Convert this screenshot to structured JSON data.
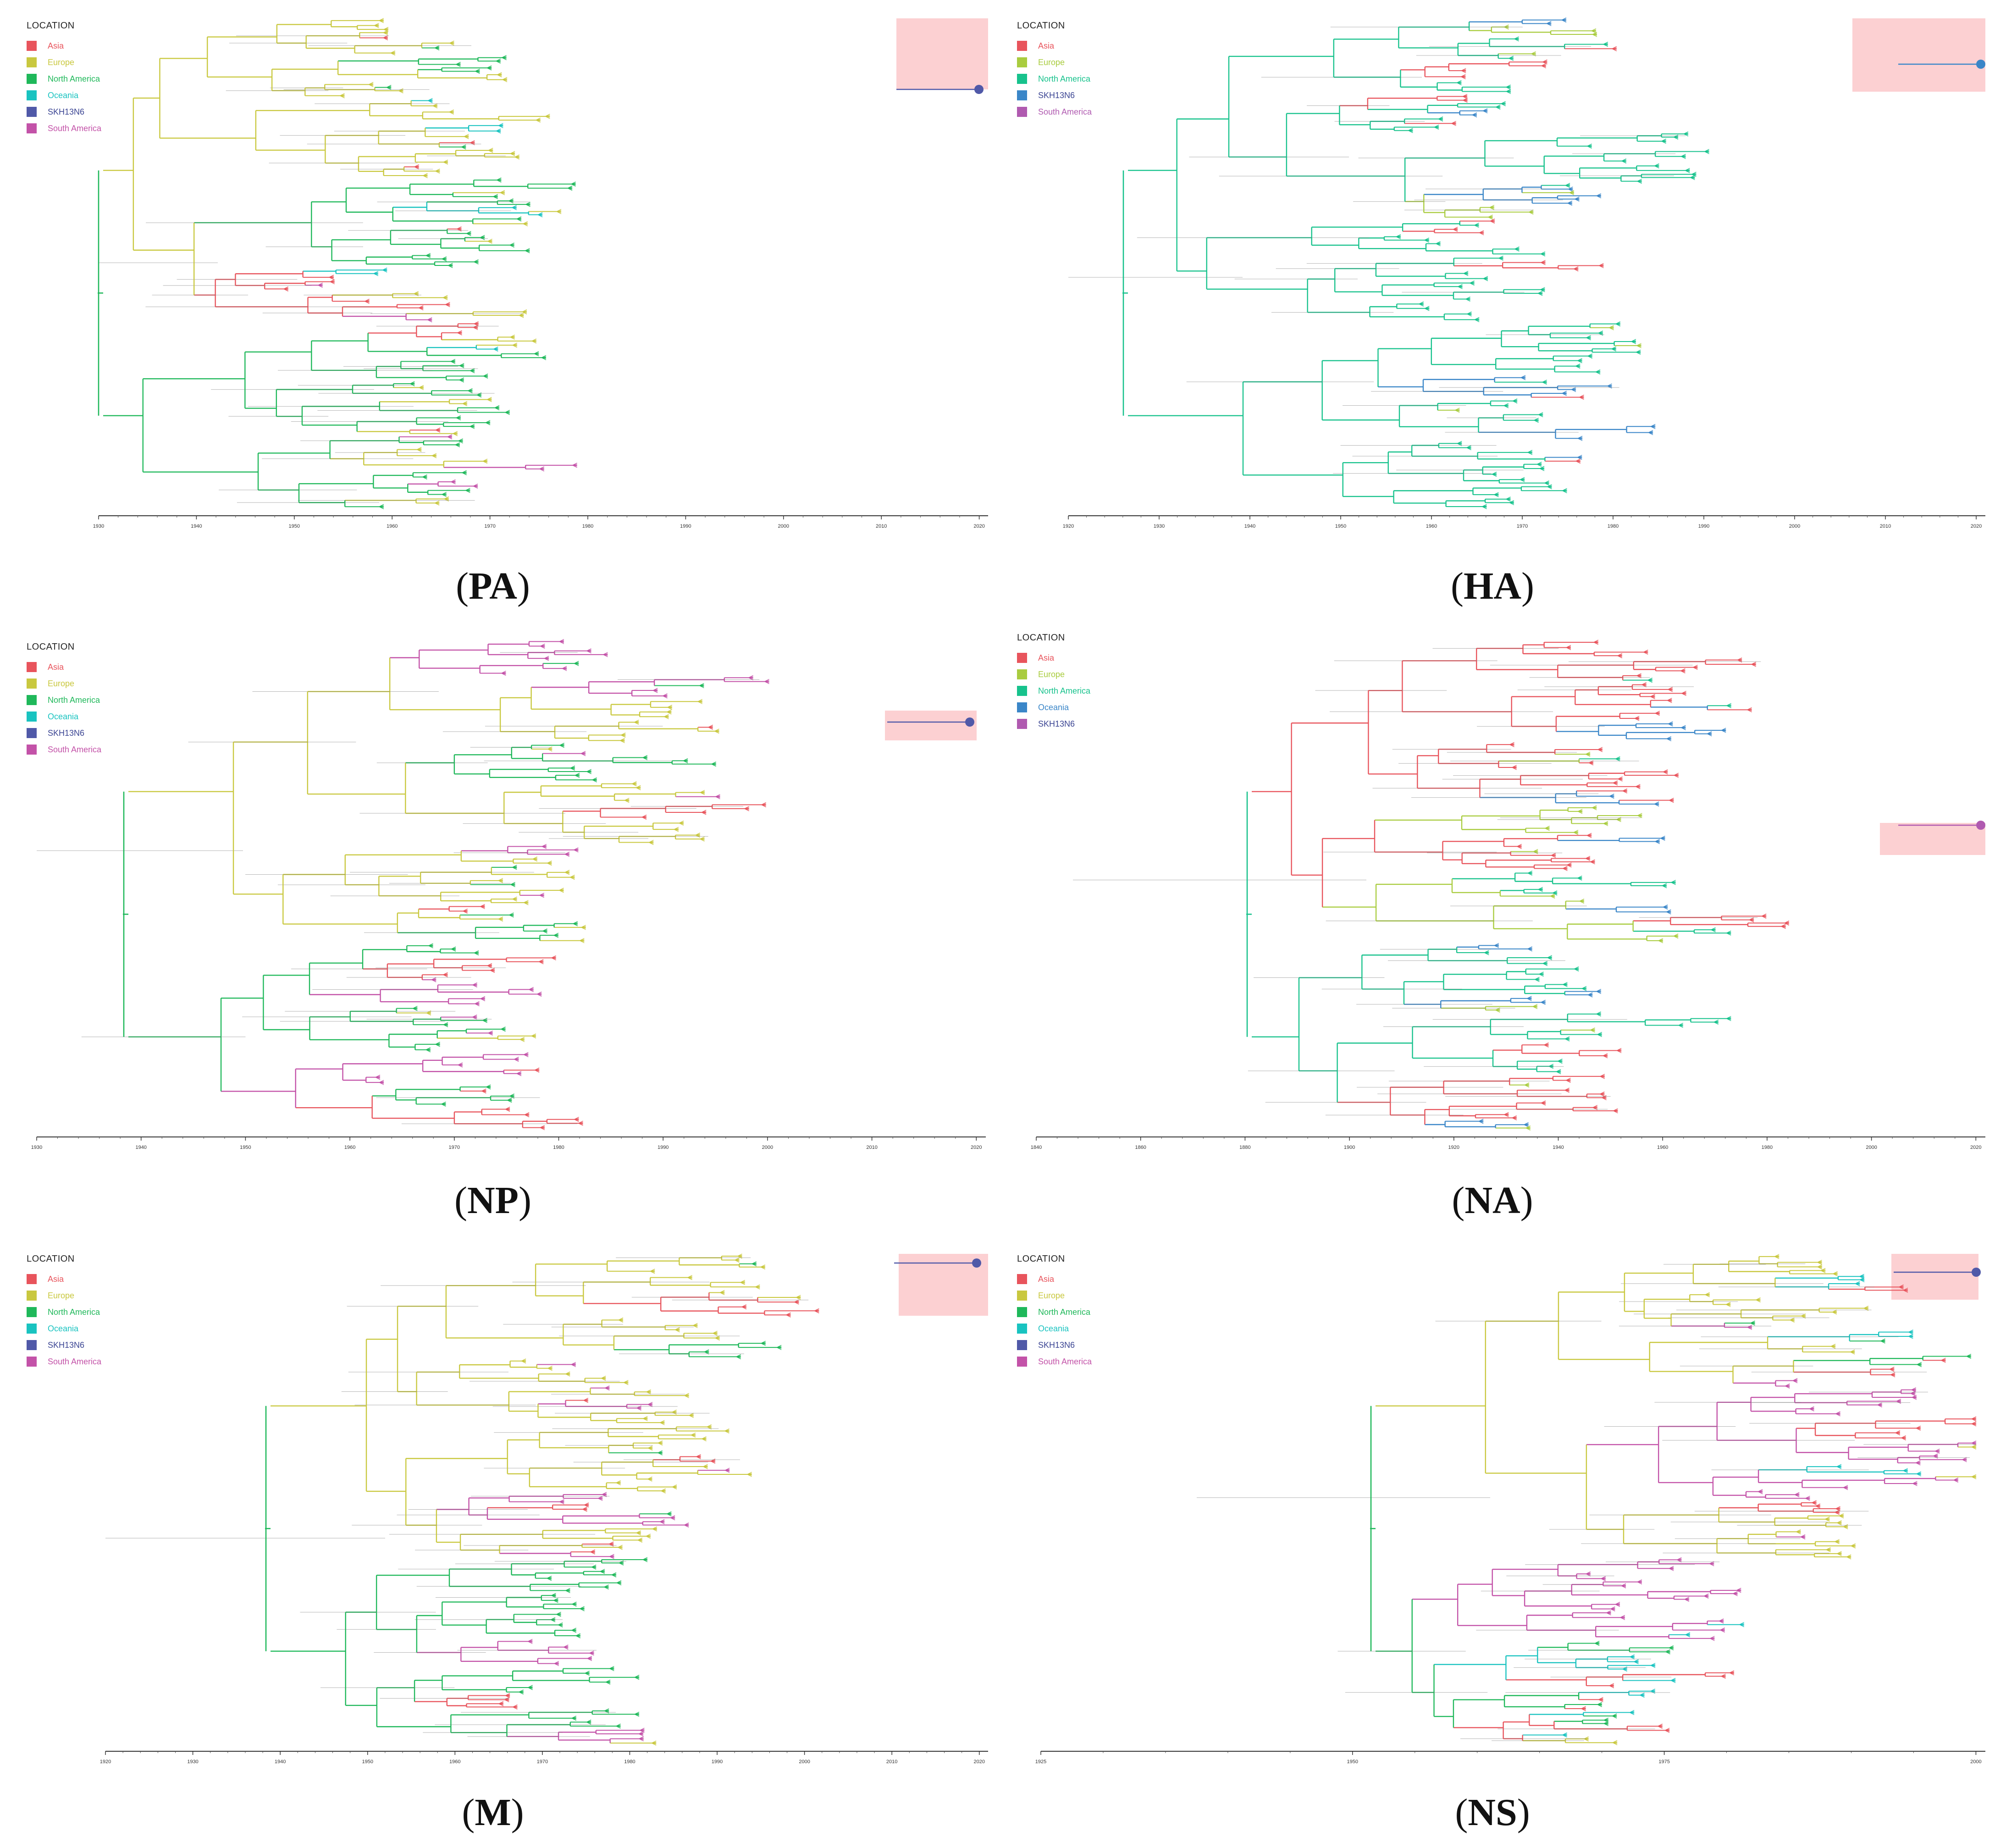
{
  "legend_title": "LOCATION",
  "colors": {
    "Asia": "#e8545c",
    "Europe": "#c9c83f",
    "North America": "#1fb85a",
    "Oceania": "#19c3c0",
    "SKH13N6": "#5059a8",
    "South America": "#c352a8",
    "Europe_alt": "#a9cc3f",
    "NorthAmerica_alt": "#17c28c",
    "Oceania_alt": "#3a86c8",
    "SKH13N6_alt": "#b05ab0",
    "South_America_alt": "#b05ab0",
    "branch_dark": "#2c4f3a",
    "highlight": "#fbc8ca"
  },
  "panels": [
    {
      "id": "PA",
      "label": "PA",
      "legend": [
        "Asia",
        "Europe",
        "North America",
        "Oceania",
        "SKH13N6",
        "South America"
      ],
      "ticks": [
        "1930",
        "1940",
        "1950",
        "1960",
        "1970",
        "1980",
        "1990",
        "2000",
        "2010",
        "2020"
      ]
    },
    {
      "id": "HA",
      "label": "HA",
      "legend": [
        "Asia",
        "Europe",
        "North America",
        "SKH13N6",
        "South America"
      ],
      "ticks": [
        "1920",
        "1930",
        "1940",
        "1950",
        "1960",
        "1970",
        "1980",
        "1990",
        "2000",
        "2010",
        "2020"
      ]
    },
    {
      "id": "NP",
      "label": "NP",
      "legend": [
        "Asia",
        "Europe",
        "North America",
        "Oceania",
        "SKH13N6",
        "South America"
      ],
      "ticks": [
        "1930",
        "1940",
        "1950",
        "1960",
        "1970",
        "1980",
        "1990",
        "2000",
        "2010",
        "2020"
      ]
    },
    {
      "id": "NA",
      "label": "NA",
      "legend": [
        "Asia",
        "Europe",
        "North America",
        "Oceania",
        "SKH13N6"
      ],
      "ticks": [
        "1840",
        "1860",
        "1880",
        "1900",
        "1920",
        "1940",
        "1960",
        "1980",
        "2000",
        "2020"
      ]
    },
    {
      "id": "M",
      "label": "M",
      "legend": [
        "Asia",
        "Europe",
        "North America",
        "Oceania",
        "SKH13N6",
        "South America"
      ],
      "ticks": [
        "1920",
        "1930",
        "1940",
        "1950",
        "1960",
        "1970",
        "1980",
        "1990",
        "2000",
        "2010",
        "2020"
      ]
    },
    {
      "id": "NS",
      "label": "NS",
      "legend": [
        "Asia",
        "Europe",
        "North America",
        "Oceania",
        "SKH13N6",
        "South America"
      ],
      "ticks": [
        "1925",
        "1950",
        "1975",
        "2000"
      ]
    }
  ]
}
